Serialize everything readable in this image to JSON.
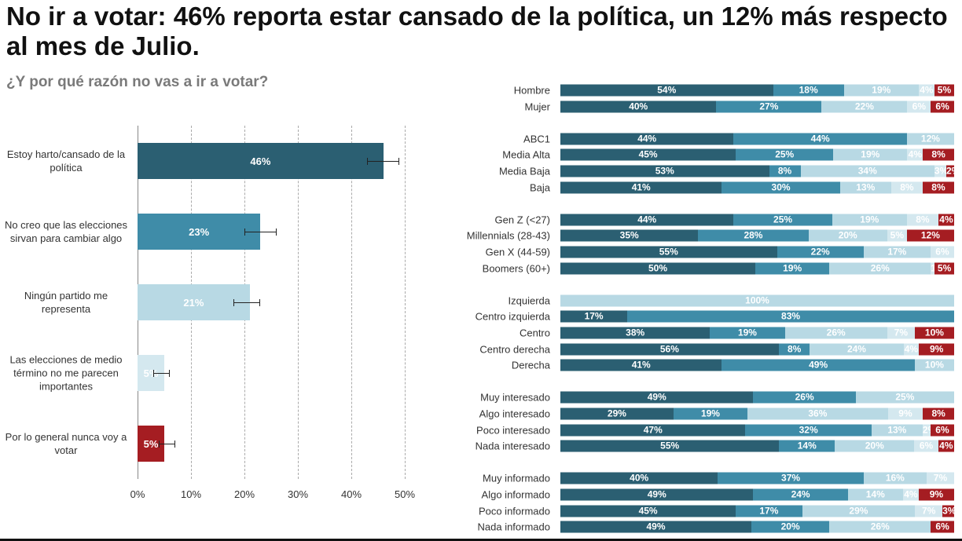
{
  "title": "No ir a votar: 46% reporta estar cansado de la política, un 12% más respecto al mes de Julio.",
  "subtitle": "¿Y por qué razón no vas a ir a votar?",
  "colors": {
    "dark": "#2b5f72",
    "mid": "#3f8ca8",
    "light": "#b8d9e4",
    "lighter": "#d4e8ef",
    "red": "#a51d22"
  },
  "chart_data": [
    {
      "type": "bar",
      "orientation": "horizontal",
      "categories": [
        "Estoy harto/cansado de la política",
        "No creo que las elecciones sirvan para cambiar algo",
        "Ningún partido me representa",
        "Las elecciones de medio término no me parecen importantes",
        "Por lo general nunca voy a votar"
      ],
      "values": [
        46,
        23,
        21,
        5,
        5
      ],
      "data_labels": [
        "46%",
        "23%",
        "21%",
        "5%",
        "5%"
      ],
      "error_bars": [
        [
          43,
          49
        ],
        [
          20,
          26
        ],
        [
          18,
          23
        ],
        [
          3,
          6
        ],
        [
          4,
          7
        ]
      ],
      "bar_colors": [
        "#2b5f72",
        "#3f8ca8",
        "#b8d9e4",
        "#d4e8ef",
        "#a51d22"
      ],
      "xlim": [
        0,
        50
      ],
      "xticks": [
        "0%",
        "10%",
        "20%",
        "30%",
        "40%",
        "50%"
      ],
      "grid": true
    },
    {
      "type": "stacked-bar",
      "orientation": "horizontal",
      "groups": [
        {
          "rows": [
            {
              "label": "Hombre",
              "values": [
                54,
                18,
                19,
                4,
                5
              ]
            },
            {
              "label": "Mujer",
              "values": [
                40,
                27,
                22,
                6,
                6
              ]
            }
          ]
        },
        {
          "rows": [
            {
              "label": "ABC1",
              "values": [
                44,
                44,
                12,
                0,
                0
              ]
            },
            {
              "label": "Media Alta",
              "values": [
                45,
                25,
                19,
                4,
                8
              ]
            },
            {
              "label": "Media Baja",
              "values": [
                53,
                8,
                34,
                3,
                2
              ]
            },
            {
              "label": "Baja",
              "values": [
                41,
                30,
                13,
                8,
                8
              ]
            }
          ]
        },
        {
          "rows": [
            {
              "label": "Gen Z (<27)",
              "values": [
                44,
                25,
                19,
                8,
                4
              ]
            },
            {
              "label": "Millennials (28-43)",
              "values": [
                35,
                28,
                20,
                5,
                12
              ]
            },
            {
              "label": "Gen X (44-59)",
              "values": [
                55,
                22,
                17,
                6,
                0
              ]
            },
            {
              "label": "Boomers (60+)",
              "values": [
                50,
                19,
                26,
                1,
                5
              ]
            }
          ]
        },
        {
          "rows": [
            {
              "label": "Izquierda",
              "values": [
                0,
                0,
                100,
                0,
                0
              ]
            },
            {
              "label": "Centro izquierda",
              "values": [
                17,
                83,
                0,
                0,
                0
              ]
            },
            {
              "label": "Centro",
              "values": [
                38,
                19,
                26,
                7,
                10
              ]
            },
            {
              "label": "Centro derecha",
              "values": [
                56,
                8,
                24,
                4,
                9
              ]
            },
            {
              "label": "Derecha",
              "values": [
                41,
                49,
                10,
                0,
                0
              ]
            }
          ]
        },
        {
          "rows": [
            {
              "label": "Muy interesado",
              "values": [
                49,
                26,
                25,
                0,
                0
              ]
            },
            {
              "label": "Algo interesado",
              "values": [
                29,
                19,
                36,
                9,
                8
              ]
            },
            {
              "label": "Poco interesado",
              "values": [
                47,
                32,
                13,
                2,
                6
              ]
            },
            {
              "label": "Nada interesado",
              "values": [
                55,
                14,
                20,
                6,
                4
              ]
            }
          ]
        },
        {
          "rows": [
            {
              "label": "Muy informado",
              "values": [
                40,
                37,
                16,
                7,
                0
              ]
            },
            {
              "label": "Algo informado",
              "values": [
                49,
                24,
                14,
                4,
                9
              ]
            },
            {
              "label": "Poco informado",
              "values": [
                45,
                17,
                29,
                7,
                3
              ]
            },
            {
              "label": "Nada informado",
              "values": [
                49,
                20,
                26,
                0,
                6
              ]
            }
          ]
        }
      ],
      "segment_colors": [
        "#2b5f72",
        "#3f8ca8",
        "#b8d9e4",
        "#d4e8ef",
        "#a51d22"
      ],
      "xlim": [
        0,
        100
      ]
    }
  ]
}
